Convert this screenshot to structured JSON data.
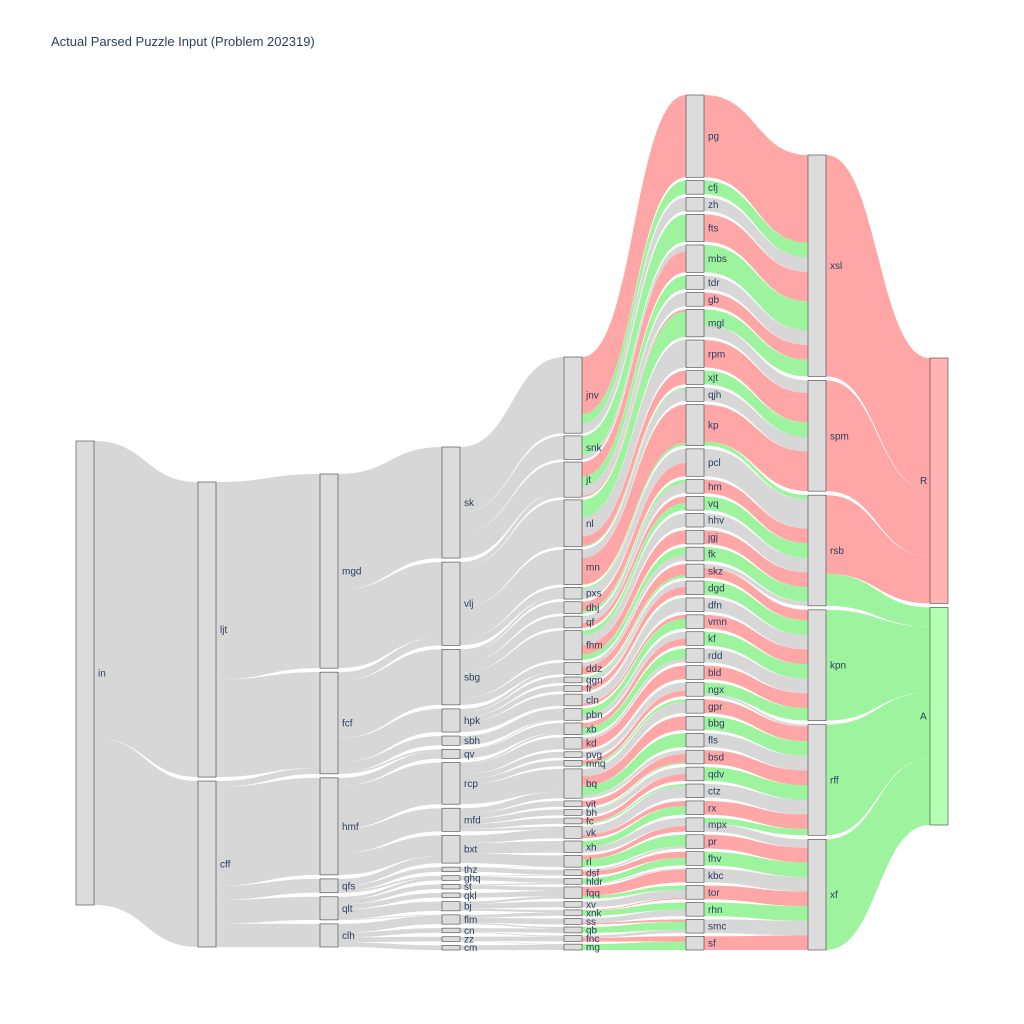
{
  "title": "Actual Parsed Puzzle Input (Problem 202319)",
  "colors": {
    "node_fill": "#dcdcdc",
    "link_grey": "rgba(150,150,150,0.38)",
    "link_red": "rgba(255,60,60,0.45)",
    "link_green": "rgba(40,230,40,0.45)",
    "final_R": "#ffb3b3",
    "final_A": "#b3ffb3"
  },
  "chart_data": {
    "type": "sankey",
    "title": "Actual Parsed Puzzle Input (Problem 202319)",
    "columns": [
      {
        "level": 0,
        "nodes": [
          {
            "name": "in",
            "value": 100
          }
        ]
      },
      {
        "level": 1,
        "nodes": [
          {
            "name": "ljt",
            "value": 64
          },
          {
            "name": "cff",
            "value": 36
          }
        ]
      },
      {
        "level": 2,
        "nodes": [
          {
            "name": "mgd",
            "value": 42
          },
          {
            "name": "fcf",
            "value": 22
          },
          {
            "name": "hmf",
            "value": 21
          },
          {
            "name": "qfs",
            "value": 3
          },
          {
            "name": "qlt",
            "value": 5
          },
          {
            "name": "clh",
            "value": 5
          }
        ]
      },
      {
        "level": 3,
        "nodes": [
          {
            "name": "sk",
            "value": 24
          },
          {
            "name": "vlj",
            "value": 18
          },
          {
            "name": "sbg",
            "value": 12
          },
          {
            "name": "hpk",
            "value": 5
          },
          {
            "name": "sbh",
            "value": 2
          },
          {
            "name": "qv",
            "value": 2
          },
          {
            "name": "rcp",
            "value": 9
          },
          {
            "name": "mfd",
            "value": 5
          },
          {
            "name": "bxt",
            "value": 6
          },
          {
            "name": "thz",
            "value": 1
          },
          {
            "name": "ghq",
            "value": 1
          },
          {
            "name": "st",
            "value": 1
          },
          {
            "name": "qkl",
            "value": 1
          },
          {
            "name": "bj",
            "value": 2
          },
          {
            "name": "flm",
            "value": 2
          },
          {
            "name": "cn",
            "value": 1
          },
          {
            "name": "zz",
            "value": 1
          },
          {
            "name": "cm",
            "value": 1
          }
        ]
      },
      {
        "level": 4,
        "nodes": [
          {
            "name": "jnv",
            "value": 13
          },
          {
            "name": "snk",
            "value": 4
          },
          {
            "name": "jt",
            "value": 6
          },
          {
            "name": "nl",
            "value": 8
          },
          {
            "name": "mn",
            "value": 6
          },
          {
            "name": "pxs",
            "value": 2
          },
          {
            "name": "dhj",
            "value": 2
          },
          {
            "name": "qf",
            "value": 2
          },
          {
            "name": "fhm",
            "value": 5
          },
          {
            "name": "ddz",
            "value": 2
          },
          {
            "name": "qgn",
            "value": 1
          },
          {
            "name": "fr",
            "value": 1
          },
          {
            "name": "cln",
            "value": 2
          },
          {
            "name": "pbn",
            "value": 2
          },
          {
            "name": "xb",
            "value": 2
          },
          {
            "name": "kd",
            "value": 2
          },
          {
            "name": "pvg",
            "value": 1
          },
          {
            "name": "mnq",
            "value": 1
          },
          {
            "name": "bq",
            "value": 5
          },
          {
            "name": "vit",
            "value": 1
          },
          {
            "name": "bh",
            "value": 1
          },
          {
            "name": "fc",
            "value": 1
          },
          {
            "name": "vk",
            "value": 2
          },
          {
            "name": "xh",
            "value": 2
          },
          {
            "name": "rl",
            "value": 2
          },
          {
            "name": "dsf",
            "value": 1
          },
          {
            "name": "hldr",
            "value": 1
          },
          {
            "name": "fqq",
            "value": 2
          },
          {
            "name": "xv",
            "value": 1
          },
          {
            "name": "xnk",
            "value": 1
          },
          {
            "name": "ss",
            "value": 1
          },
          {
            "name": "qb",
            "value": 1
          },
          {
            "name": "fnc",
            "value": 1
          },
          {
            "name": "mg",
            "value": 1
          }
        ]
      },
      {
        "level": 5,
        "nodes": [
          {
            "name": "pg",
            "value": 6
          },
          {
            "name": "cfj",
            "value": 1
          },
          {
            "name": "zh",
            "value": 1
          },
          {
            "name": "fts",
            "value": 2
          },
          {
            "name": "mbs",
            "value": 2
          },
          {
            "name": "tdr",
            "value": 1
          },
          {
            "name": "gb",
            "value": 1
          },
          {
            "name": "mgl",
            "value": 2
          },
          {
            "name": "rpm",
            "value": 2
          },
          {
            "name": "xjt",
            "value": 1
          },
          {
            "name": "qjh",
            "value": 1
          },
          {
            "name": "kp",
            "value": 3
          },
          {
            "name": "pcl",
            "value": 2
          },
          {
            "name": "hm",
            "value": 1
          },
          {
            "name": "vq",
            "value": 1
          },
          {
            "name": "hhv",
            "value": 1
          },
          {
            "name": "jgj",
            "value": 1
          },
          {
            "name": "fk",
            "value": 1
          },
          {
            "name": "skz",
            "value": 1
          },
          {
            "name": "dgd",
            "value": 1
          },
          {
            "name": "dfn",
            "value": 1
          },
          {
            "name": "vmn",
            "value": 1
          },
          {
            "name": "kf",
            "value": 1
          },
          {
            "name": "rdd",
            "value": 1
          },
          {
            "name": "bld",
            "value": 1
          },
          {
            "name": "ngx",
            "value": 1
          },
          {
            "name": "gpr",
            "value": 1
          },
          {
            "name": "bbg",
            "value": 1
          },
          {
            "name": "fls",
            "value": 1
          },
          {
            "name": "bsd",
            "value": 1
          },
          {
            "name": "qdv",
            "value": 1
          },
          {
            "name": "ctz",
            "value": 1
          },
          {
            "name": "rx",
            "value": 1
          },
          {
            "name": "mpx",
            "value": 1
          },
          {
            "name": "pr",
            "value": 1
          },
          {
            "name": "fhv",
            "value": 1
          },
          {
            "name": "kbc",
            "value": 1
          },
          {
            "name": "tor",
            "value": 1
          },
          {
            "name": "rhn",
            "value": 1
          },
          {
            "name": "smc",
            "value": 1
          },
          {
            "name": "sf",
            "value": 1
          }
        ]
      },
      {
        "level": 6,
        "nodes": [
          {
            "name": "xsl",
            "value": 2
          },
          {
            "name": "spm",
            "value": 1
          },
          {
            "name": "rsb",
            "value": 1
          },
          {
            "name": "kpn",
            "value": 1
          },
          {
            "name": "rff",
            "value": 1
          },
          {
            "name": "xf",
            "value": 1
          }
        ]
      },
      {
        "level": 7,
        "nodes": [
          {
            "name": "R",
            "value": 53
          },
          {
            "name": "A",
            "value": 47
          }
        ]
      }
    ],
    "links_summary": "Flows from 'in' through workflow nodes terminate in R (red links) or A (green links); intermediate links grey."
  }
}
